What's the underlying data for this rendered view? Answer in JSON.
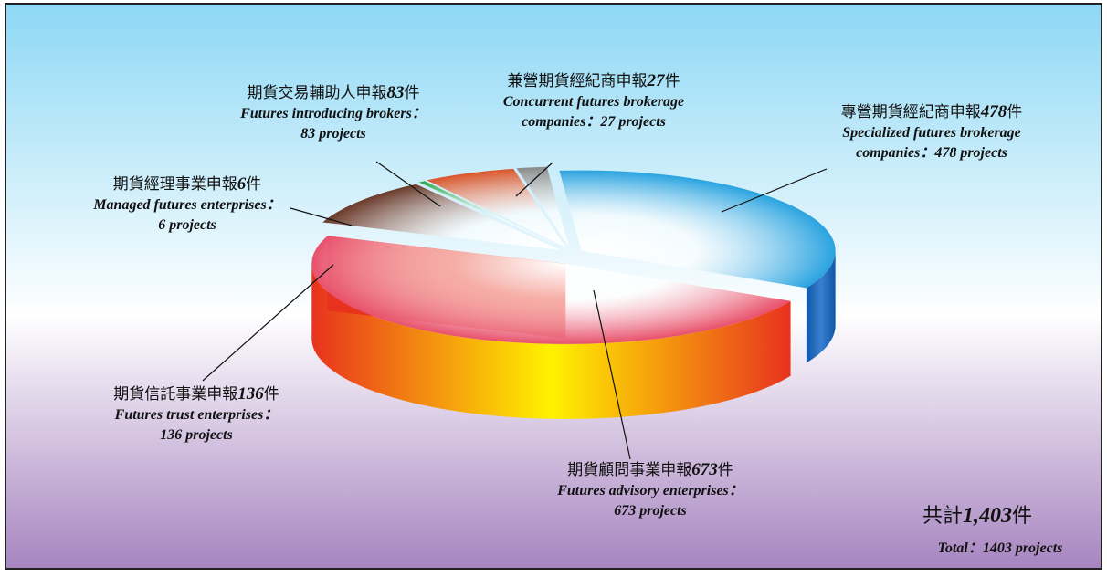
{
  "chart_data": {
    "type": "pie3d",
    "categories": [
      "專營期貨經紀商申報",
      "期貨顧問事業申報",
      "期貨信託事業申報",
      "期貨經理事業申報",
      "期貨交易輔助人申報",
      "兼營期貨經紀商申報"
    ],
    "unit": "件",
    "values": [
      478,
      673,
      136,
      6,
      83,
      27
    ],
    "descriptions": [
      [
        "Specialized futures brokerage",
        "companies：478 projects"
      ],
      [
        "Futures advisory enterprises：",
        "673 projects"
      ],
      [
        "Futures trust enterprises：",
        "136 projects"
      ],
      [
        "Managed futures enterprises：",
        "6 projects"
      ],
      [
        "Futures introducing brokers：",
        "83 projects"
      ],
      [
        "Concurrent futures brokerage",
        "companies：27 projects"
      ]
    ],
    "colors": [
      "#29a3e0",
      "#e8506a",
      "#6b3a2a",
      "#2fa84a",
      "#d9552a",
      "#8a8a8a"
    ],
    "side_colors": [
      "#0f57a8",
      "#e8321e",
      "#8a4a40",
      "#1f7a2e",
      "#8a1a1a",
      "#111111"
    ],
    "side_highlights": [
      "#3a7fd0",
      "#fff200",
      "#c08070",
      "#3cb04a",
      "#b02a2a",
      "#555555"
    ],
    "total": {
      "label_zh": "共計",
      "value_label": "1,403",
      "unit": "件",
      "description": "Total：1403 projects"
    }
  }
}
